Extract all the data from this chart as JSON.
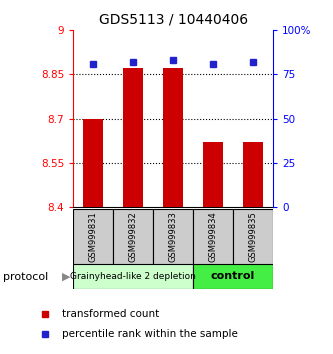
{
  "title": "GDS5113 / 10440406",
  "samples": [
    "GSM999831",
    "GSM999832",
    "GSM999833",
    "GSM999834",
    "GSM999835"
  ],
  "red_values": [
    8.7,
    8.87,
    8.87,
    8.62,
    8.62
  ],
  "blue_values": [
    81,
    82,
    83,
    81,
    82
  ],
  "ylim_left": [
    8.4,
    9.0
  ],
  "ylim_right": [
    0,
    100
  ],
  "yticks_left": [
    8.4,
    8.55,
    8.7,
    8.85,
    9.0
  ],
  "ytick_labels_left": [
    "8.4",
    "8.55",
    "8.7",
    "8.85",
    "9"
  ],
  "yticks_right": [
    0,
    25,
    50,
    75,
    100
  ],
  "ytick_labels_right": [
    "0",
    "25",
    "50",
    "75",
    "100%"
  ],
  "hlines": [
    8.55,
    8.7,
    8.85
  ],
  "group1_label": "Grainyhead-like 2 depletion",
  "group2_label": "control",
  "protocol_label": "protocol",
  "legend_red": "transformed count",
  "legend_blue": "percentile rank within the sample",
  "bar_color": "#cc0000",
  "dot_color": "#2222cc",
  "group1_bg": "#ccffcc",
  "group2_bg": "#44ee44",
  "sample_bg": "#cccccc",
  "title_fontsize": 10,
  "tick_fontsize": 7.5,
  "legend_fontsize": 7.5,
  "sample_fontsize": 6,
  "group_fontsize": 6.5,
  "bar_width": 0.5
}
